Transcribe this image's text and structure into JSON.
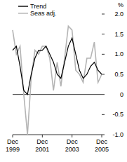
{
  "chart_data": {
    "type": "line",
    "y_label": "%",
    "categories": [
      "Dec 1999",
      null,
      null,
      null,
      null,
      null,
      null,
      null,
      "Dec 2001",
      null,
      null,
      null,
      null,
      null,
      null,
      null,
      "Dec 2003",
      null,
      null,
      null,
      null,
      null,
      null,
      null,
      "Dec 2005"
    ],
    "series": [
      {
        "name": "Trend",
        "color": "#000000",
        "values": [
          1.1,
          1.2,
          0.7,
          0.1,
          0.0,
          0.5,
          0.9,
          1.1,
          1.1,
          1.2,
          1.0,
          0.8,
          0.5,
          0.4,
          0.8,
          1.2,
          1.4,
          1.0,
          0.6,
          0.4,
          0.5,
          0.7,
          0.8,
          0.6,
          0.5
        ]
      },
      {
        "name": "Seas adj.",
        "color": "#b4b4b4",
        "values": [
          1.6,
          1.0,
          1.2,
          0.0,
          -1.0,
          0.4,
          1.1,
          1.0,
          1.2,
          1.2,
          0.9,
          0.1,
          0.8,
          0.2,
          0.9,
          1.7,
          1.6,
          0.6,
          0.5,
          0.3,
          0.9,
          0.9,
          1.3,
          0.3,
          0.5
        ]
      }
    ],
    "ylim": [
      -1.0,
      2.0
    ],
    "yticks": [
      {
        "value": -1.0,
        "label": "-1.0"
      },
      {
        "value": -0.5,
        "label": "-0.5"
      },
      0,
      {
        "value": 0.5,
        "label": "0.5"
      },
      {
        "value": 1.0,
        "label": "1.0"
      },
      {
        "value": 1.5,
        "label": "1.5"
      },
      {
        "value": 2.0,
        "label": "2.0"
      }
    ],
    "legend": "upper left",
    "grid": false
  }
}
